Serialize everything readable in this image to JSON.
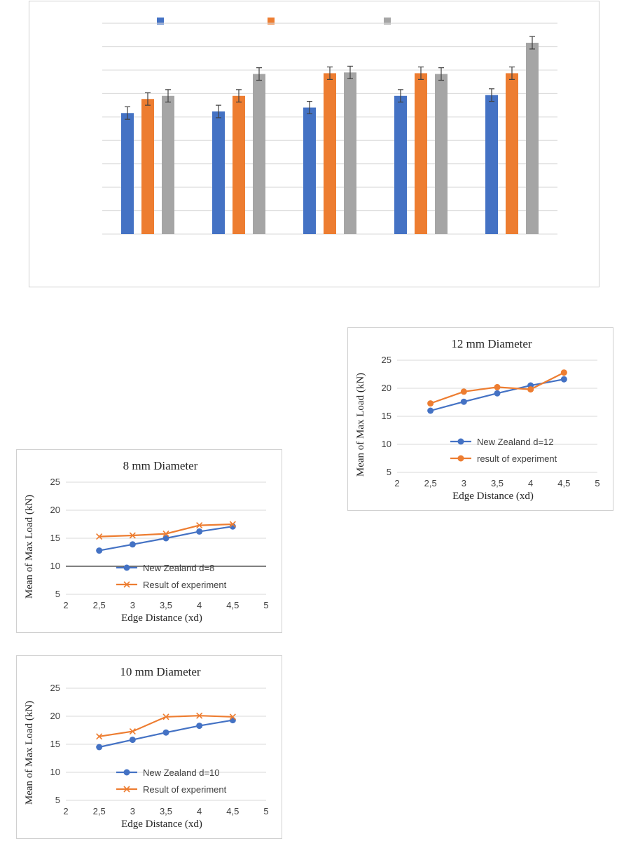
{
  "chart_data": [
    {
      "type": "bar",
      "title": "",
      "categories": [
        "",
        "",
        "",
        "",
        ""
      ],
      "series": [
        {
          "values": [
            15.5,
            15.7,
            16.2,
            17.7,
            17.8
          ],
          "errors": [
            0.8,
            0.8,
            0.8,
            0.8,
            0.8
          ],
          "color": "#4472c4"
        },
        {
          "values": [
            17.3,
            17.7,
            20.6,
            20.6,
            20.6
          ],
          "errors": [
            0.8,
            0.8,
            0.8,
            0.8,
            0.8
          ],
          "color": "#ed7d31"
        },
        {
          "values": [
            17.7,
            20.5,
            20.7,
            20.5,
            24.5
          ],
          "errors": [
            0.8,
            0.8,
            0.8,
            0.8,
            0.8
          ],
          "color": "#a5a5a5"
        }
      ],
      "ylim": [
        0,
        28
      ],
      "grid": true,
      "legend": "top"
    },
    {
      "type": "line",
      "title": "8 mm Diameter",
      "xlabel": "Edge Distance (xd)",
      "ylabel": "Mean of Max Load (kN)",
      "x": [
        2.5,
        3,
        3.5,
        4,
        4.5
      ],
      "series": [
        {
          "name": "New Zealand d=8",
          "values": [
            12.8,
            13.9,
            15.0,
            16.2,
            17.1
          ],
          "color": "#4472c4",
          "marker": "circle"
        },
        {
          "name": "Result of experiment",
          "values": [
            15.3,
            15.5,
            15.8,
            17.3,
            17.5
          ],
          "color": "#ed7d31",
          "marker": "x"
        }
      ],
      "xlim": [
        2,
        5
      ],
      "ylim": [
        5,
        25
      ],
      "xticks": [
        "2",
        "2,5",
        "3",
        "3,5",
        "4",
        "4,5",
        "5"
      ],
      "yticks": [
        "5",
        "10",
        "15",
        "20",
        "25"
      ],
      "legend": "bottom-inside"
    },
    {
      "type": "line",
      "title": "10 mm Diameter",
      "xlabel": "Edge Distance (xd)",
      "ylabel": "Mean of Max Load (kN)",
      "x": [
        2.5,
        3,
        3.5,
        4,
        4.5
      ],
      "series": [
        {
          "name": "New Zealand d=10",
          "values": [
            14.5,
            15.8,
            17.1,
            18.3,
            19.3
          ],
          "color": "#4472c4",
          "marker": "circle"
        },
        {
          "name": "Result of experiment",
          "values": [
            16.4,
            17.3,
            19.9,
            20.1,
            19.9
          ],
          "color": "#ed7d31",
          "marker": "x"
        }
      ],
      "xlim": [
        2,
        5
      ],
      "ylim": [
        5,
        25
      ],
      "xticks": [
        "2",
        "2,5",
        "3",
        "3,5",
        "4",
        "4,5",
        "5"
      ],
      "yticks": [
        "5",
        "10",
        "15",
        "20",
        "25"
      ],
      "legend": "bottom-inside"
    },
    {
      "type": "line",
      "title": "12 mm Diameter",
      "xlabel": "Edge Distance (xd)",
      "ylabel": "Mean of Max Load (kN)",
      "x": [
        2.5,
        3,
        3.5,
        4,
        4.5
      ],
      "series": [
        {
          "name": "New Zealand d=12",
          "values": [
            16.0,
            17.6,
            19.1,
            20.5,
            21.6
          ],
          "color": "#4472c4",
          "marker": "circle"
        },
        {
          "name": "result of experiment",
          "values": [
            17.3,
            19.4,
            20.2,
            19.8,
            22.8
          ],
          "color": "#ed7d31",
          "marker": "circle"
        }
      ],
      "xlim": [
        2,
        5
      ],
      "ylim": [
        5,
        25
      ],
      "xticks": [
        "2",
        "2,5",
        "3",
        "3,5",
        "4",
        "4,5",
        "5"
      ],
      "yticks": [
        "5",
        "10",
        "15",
        "20",
        "25"
      ],
      "legend": "bottom-inside"
    }
  ]
}
